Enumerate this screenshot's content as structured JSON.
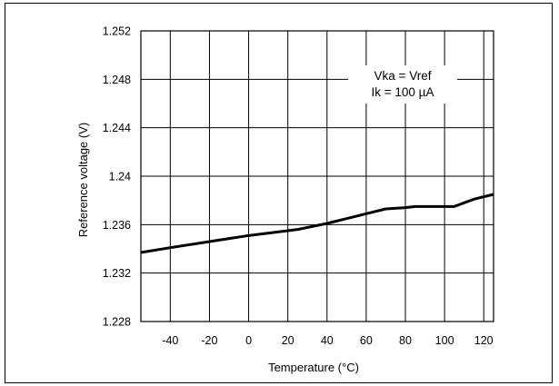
{
  "chart_data": {
    "type": "line",
    "xlabel": "Temperature (°C)",
    "ylabel": "Reference voltage (V)",
    "xlim": [
      -55,
      125
    ],
    "ylim": [
      1.228,
      1.252
    ],
    "x_ticks": [
      -40,
      -20,
      0,
      20,
      40,
      60,
      80,
      100,
      120
    ],
    "x_tick_labels": [
      "-40",
      "-20",
      "0",
      "20",
      "40",
      "60",
      "80",
      "100",
      "120"
    ],
    "y_ticks": [
      1.228,
      1.232,
      1.236,
      1.24,
      1.244,
      1.248,
      1.252
    ],
    "y_tick_labels": [
      "1.228",
      "1.232",
      "1.236",
      "1.24",
      "1.244",
      "1.248",
      "1.252"
    ],
    "grid": true,
    "annotation": [
      "Vka = Vref",
      "Ik = 100 µA"
    ],
    "annotation_position": "top-right",
    "series": [
      {
        "color": "#000000",
        "x": [
          -55,
          -40,
          -20,
          0,
          20,
          25,
          40,
          50,
          60,
          70,
          80,
          85,
          100,
          105,
          115,
          125
        ],
        "y": [
          1.2337,
          1.2341,
          1.2346,
          1.2351,
          1.2355,
          1.2356,
          1.2361,
          1.2365,
          1.2369,
          1.2373,
          1.2374,
          1.2375,
          1.2375,
          1.2375,
          1.2381,
          1.2385
        ]
      }
    ]
  }
}
